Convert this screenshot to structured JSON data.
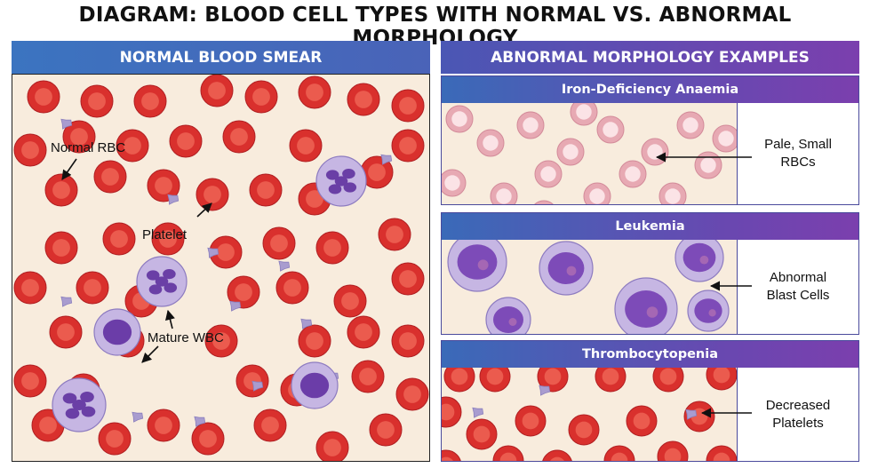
{
  "title": "DIAGRAM: BLOOD CELL TYPES WITH NORMAL VS. ABNORMAL MORPHOLOGY",
  "left_panel": {
    "header": "NORMAL BLOOD SMEAR",
    "labels": {
      "rbc": "Normal RBC",
      "platelet": "Platelet",
      "wbc": "Mature WBC"
    }
  },
  "right_panel": {
    "header": "ABNORMAL MORPHOLOGY EXAMPLES",
    "sections": [
      {
        "header": "Iron-Deficiency Anaemia",
        "label_line1": "Pale, Small",
        "label_line2": "RBCs"
      },
      {
        "header": "Leukemia",
        "label_line1": "Abnormal",
        "label_line2": "Blast Cells"
      },
      {
        "header": "Thrombocytopenia",
        "label_line1": "Decreased",
        "label_line2": "Platelets"
      }
    ]
  },
  "colors": {
    "rbc": "#d9302d",
    "rbc_center": "#f06a5a",
    "pale_rbc": "#e7a9b3",
    "smear_background": "#f8ecdd",
    "wbc_cytoplasm": "#c6b6e3",
    "wbc_nucleus": "#6a3fa6",
    "platelet": "#a99ccf",
    "header_blue": "#3b74c0",
    "header_purple": "#7b3fae"
  }
}
